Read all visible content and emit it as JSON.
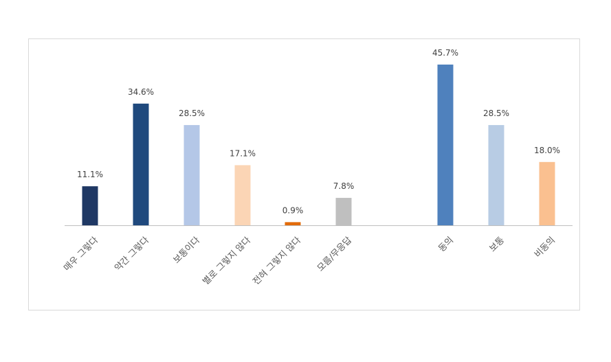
{
  "chart_data": {
    "type": "bar",
    "categories": [
      "매우 그렇다",
      "약간 그렇다",
      "보통이다",
      "별로 그렇지 않다",
      "전혀 그렇지 않다",
      "모름/무응답",
      "동의",
      "보통",
      "비동의"
    ],
    "values": [
      11.1,
      34.6,
      28.5,
      17.1,
      0.9,
      7.8,
      45.7,
      28.5,
      18.0
    ],
    "value_labels": [
      "11.1%",
      "34.6%",
      "28.5%",
      "17.1%",
      "0.9%",
      "7.8%",
      "45.7%",
      "28.5%",
      "18.0%"
    ],
    "colors": [
      "#1f3864",
      "#1f497d",
      "#b4c7e7",
      "#fbd5b5",
      "#e26b0a",
      "#bfbfbf",
      "#4f81bd",
      "#b8cce4",
      "#fac090"
    ],
    "ylim": [
      0,
      50
    ],
    "grid": false,
    "legend": "none"
  }
}
